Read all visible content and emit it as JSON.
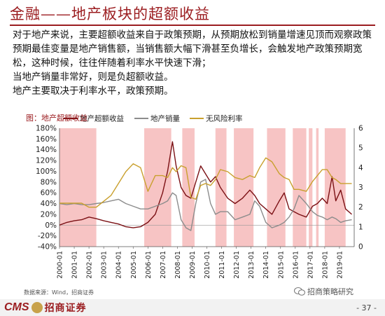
{
  "title": "金融——地产板块的超额收益",
  "paragraphs": [
    "对于地产来说，主要超额收益来自于政策预期，从预期放松到销量增速见顶而观察政策预期最佳变量是地产销售额，当销售额大幅下滑甚至负增长，会触发地产政策预期宽松，这种时候，往往伴随着利率水平快速下滑；",
    "当地产销量非常好，则是负超额收益。",
    "地产主要取决于利率水平，政策预期。"
  ],
  "chart_caption": "图：地产超额收益",
  "source": "数据来源：Wind，招商证券",
  "footer": {
    "logo_en": "CMS",
    "logo_cn": "招商证券",
    "wechat": "招商策略研究",
    "page": "- 37 -"
  },
  "colors": {
    "brand": "#9b1d20",
    "excess": "#7b1014",
    "sales": "#8c8c8c",
    "rate": "#c9a02e",
    "shade": "#f7c4c4"
  },
  "chart_data": {
    "type": "line",
    "x_start": "2000-01",
    "x_end": "2019-12",
    "xticks": [
      "2000-01",
      "2001-01",
      "2002-01",
      "2003-01",
      "2004-01",
      "2005-01",
      "2006-01",
      "2007-01",
      "2008-01",
      "2009-01",
      "2010-01",
      "2011-01",
      "2012-01",
      "2013-01",
      "2014-01",
      "2015-01",
      "2016-01",
      "2017-01",
      "2018-01",
      "2019-01"
    ],
    "y_left": {
      "range": [
        -40,
        180
      ],
      "ticks": [
        "-40%",
        "-20%",
        "0%",
        "20%",
        "40%",
        "60%",
        "80%",
        "100%",
        "120%",
        "140%",
        "160%",
        "180%"
      ]
    },
    "y_right": {
      "range": [
        0,
        6
      ],
      "ticks": [
        "0",
        "1",
        "2",
        "3",
        "4",
        "5",
        "6"
      ]
    },
    "legend": [
      "地产超额收益",
      "地产销量",
      "无风险利率"
    ],
    "shaded_periods": [
      [
        "2000-01",
        "2002-07"
      ],
      [
        "2005-10",
        "2007-08"
      ],
      [
        "2008-05",
        "2009-03"
      ],
      [
        "2010-08",
        "2011-05"
      ],
      [
        "2011-11",
        "2013-03"
      ],
      [
        "2014-02",
        "2015-05"
      ],
      [
        "2015-11",
        "2016-10"
      ],
      [
        "2016-12",
        "2017-03"
      ],
      [
        "2017-06",
        "2017-08"
      ],
      [
        "2018-01",
        "2019-06"
      ]
    ],
    "series": [
      {
        "name": "地产超额收益",
        "axis": "left",
        "points": [
          [
            "2000-01",
            0
          ],
          [
            "2000-07",
            5
          ],
          [
            "2001-01",
            8
          ],
          [
            "2001-07",
            10
          ],
          [
            "2002-01",
            15
          ],
          [
            "2002-07",
            12
          ],
          [
            "2003-01",
            8
          ],
          [
            "2003-07",
            5
          ],
          [
            "2004-01",
            2
          ],
          [
            "2004-07",
            -3
          ],
          [
            "2005-01",
            -5
          ],
          [
            "2005-07",
            -3
          ],
          [
            "2006-01",
            5
          ],
          [
            "2006-07",
            20
          ],
          [
            "2007-01",
            60
          ],
          [
            "2007-05",
            100
          ],
          [
            "2007-09",
            155
          ],
          [
            "2007-12",
            110
          ],
          [
            "2008-04",
            70
          ],
          [
            "2008-08",
            55
          ],
          [
            "2008-12",
            50
          ],
          [
            "2009-04",
            80
          ],
          [
            "2009-08",
            110
          ],
          [
            "2009-12",
            95
          ],
          [
            "2010-04",
            80
          ],
          [
            "2010-08",
            90
          ],
          [
            "2010-12",
            70
          ],
          [
            "2011-06",
            50
          ],
          [
            "2011-12",
            40
          ],
          [
            "2012-06",
            50
          ],
          [
            "2012-12",
            65
          ],
          [
            "2013-04",
            55
          ],
          [
            "2013-08",
            40
          ],
          [
            "2014-01",
            30
          ],
          [
            "2014-06",
            20
          ],
          [
            "2014-12",
            45
          ],
          [
            "2015-04",
            60
          ],
          [
            "2015-08",
            30
          ],
          [
            "2015-12",
            25
          ],
          [
            "2016-04",
            20
          ],
          [
            "2016-10",
            15
          ],
          [
            "2017-03",
            35
          ],
          [
            "2017-07",
            40
          ],
          [
            "2017-11",
            50
          ],
          [
            "2018-03",
            40
          ],
          [
            "2018-07",
            90
          ],
          [
            "2018-10",
            45
          ],
          [
            "2019-02",
            65
          ],
          [
            "2019-06",
            30
          ],
          [
            "2019-11",
            20
          ]
        ]
      },
      {
        "name": "地产销量",
        "axis": "left",
        "points": [
          [
            "2000-01",
            40
          ],
          [
            "2000-07",
            38
          ],
          [
            "2001-01",
            40
          ],
          [
            "2001-07",
            38
          ],
          [
            "2002-01",
            38
          ],
          [
            "2002-07",
            40
          ],
          [
            "2003-01",
            42
          ],
          [
            "2003-07",
            45
          ],
          [
            "2004-01",
            48
          ],
          [
            "2004-07",
            40
          ],
          [
            "2005-01",
            35
          ],
          [
            "2005-07",
            30
          ],
          [
            "2006-01",
            30
          ],
          [
            "2006-07",
            35
          ],
          [
            "2007-01",
            40
          ],
          [
            "2007-05",
            45
          ],
          [
            "2007-09",
            60
          ],
          [
            "2007-12",
            55
          ],
          [
            "2008-04",
            10
          ],
          [
            "2008-08",
            -5
          ],
          [
            "2008-12",
            -10
          ],
          [
            "2009-04",
            40
          ],
          [
            "2009-08",
            80
          ],
          [
            "2009-12",
            85
          ],
          [
            "2010-04",
            40
          ],
          [
            "2010-08",
            20
          ],
          [
            "2010-12",
            25
          ],
          [
            "2011-06",
            25
          ],
          [
            "2011-12",
            10
          ],
          [
            "2012-06",
            15
          ],
          [
            "2012-12",
            20
          ],
          [
            "2013-04",
            45
          ],
          [
            "2013-08",
            35
          ],
          [
            "2014-01",
            5
          ],
          [
            "2014-06",
            -5
          ],
          [
            "2014-12",
            0
          ],
          [
            "2015-04",
            5
          ],
          [
            "2015-08",
            15
          ],
          [
            "2015-12",
            30
          ],
          [
            "2016-04",
            55
          ],
          [
            "2016-10",
            40
          ],
          [
            "2017-03",
            25
          ],
          [
            "2017-07",
            18
          ],
          [
            "2017-11",
            15
          ],
          [
            "2018-03",
            10
          ],
          [
            "2018-07",
            15
          ],
          [
            "2018-10",
            12
          ],
          [
            "2019-02",
            5
          ],
          [
            "2019-06",
            8
          ],
          [
            "2019-11",
            10
          ]
        ]
      },
      {
        "name": "无风险利率",
        "axis": "right",
        "points": [
          [
            "2000-01",
            2.2
          ],
          [
            "2000-07",
            2.2
          ],
          [
            "2001-01",
            2.2
          ],
          [
            "2001-07",
            2.2
          ],
          [
            "2002-01",
            2.0
          ],
          [
            "2002-07",
            2.0
          ],
          [
            "2003-01",
            2.3
          ],
          [
            "2003-07",
            2.6
          ],
          [
            "2004-01",
            3.2
          ],
          [
            "2004-07",
            3.8
          ],
          [
            "2005-01",
            4.2
          ],
          [
            "2005-07",
            4.0
          ],
          [
            "2006-01",
            2.8
          ],
          [
            "2006-07",
            3.6
          ],
          [
            "2007-01",
            3.6
          ],
          [
            "2007-05",
            3.5
          ],
          [
            "2007-09",
            4.0
          ],
          [
            "2007-12",
            3.8
          ],
          [
            "2008-04",
            4.1
          ],
          [
            "2008-08",
            4.0
          ],
          [
            "2008-12",
            2.5
          ],
          [
            "2009-04",
            2.4
          ],
          [
            "2009-08",
            3.1
          ],
          [
            "2009-12",
            3.2
          ],
          [
            "2010-04",
            3.1
          ],
          [
            "2010-08",
            3.4
          ],
          [
            "2010-12",
            3.9
          ],
          [
            "2011-06",
            3.8
          ],
          [
            "2011-12",
            3.5
          ],
          [
            "2012-06",
            3.4
          ],
          [
            "2012-12",
            3.6
          ],
          [
            "2013-04",
            3.5
          ],
          [
            "2013-08",
            4.0
          ],
          [
            "2014-01",
            4.5
          ],
          [
            "2014-06",
            4.3
          ],
          [
            "2014-12",
            3.7
          ],
          [
            "2015-04",
            3.5
          ],
          [
            "2015-08",
            3.4
          ],
          [
            "2015-12",
            2.9
          ],
          [
            "2016-04",
            2.9
          ],
          [
            "2016-10",
            2.8
          ],
          [
            "2017-03",
            3.3
          ],
          [
            "2017-07",
            3.6
          ],
          [
            "2017-11",
            3.9
          ],
          [
            "2018-03",
            3.9
          ],
          [
            "2018-07",
            3.5
          ],
          [
            "2018-10",
            3.4
          ],
          [
            "2019-02",
            3.2
          ],
          [
            "2019-06",
            3.2
          ],
          [
            "2019-11",
            3.2
          ]
        ]
      }
    ]
  }
}
